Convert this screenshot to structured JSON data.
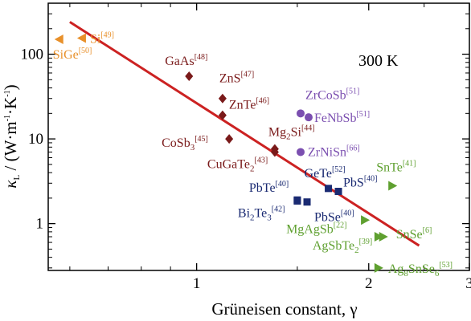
{
  "chart_data": {
    "type": "scatter",
    "title": "",
    "annotation": "300 K",
    "x_axis": {
      "label": "Grüneisen constant, γ",
      "scale": "log",
      "range": [
        0.55,
        3.0
      ],
      "ticks": [
        1,
        2,
        3
      ],
      "tick_labels": [
        "1",
        "2",
        "3"
      ]
    },
    "y_axis": {
      "label": "κL / (W·m⁻¹·K⁻¹)",
      "scale": "log",
      "range": [
        0.28,
        400
      ],
      "ticks": [
        1,
        10,
        100
      ],
      "tick_labels": [
        "1",
        "10",
        "100"
      ]
    },
    "grid": false,
    "legend": "none",
    "colors": {
      "fit_line": "#cc2222",
      "group_si": "#e8902a",
      "group_ii": "#7a1a1a",
      "group_iii": "#7b4fb0",
      "group_iv": "#1a2a72",
      "group_v": "#5fa030"
    },
    "fit_line": {
      "x": [
        0.6,
        2.45
      ],
      "y": [
        240,
        0.55
      ]
    },
    "points": [
      {
        "x": 0.63,
        "y": 155,
        "marker": "triangle-left",
        "group": "si",
        "label": "Si",
        "ref": "[49]",
        "sub": ""
      },
      {
        "x": 0.575,
        "y": 150,
        "marker": "triangle-left",
        "group": "si",
        "label": "SiGe",
        "ref": "[50]",
        "sub": ""
      },
      {
        "x": 0.97,
        "y": 55,
        "marker": "diamond",
        "group": "ii",
        "label": "GaAs",
        "ref": "[48]",
        "sub": ""
      },
      {
        "x": 1.11,
        "y": 30,
        "marker": "diamond",
        "group": "ii",
        "label": "ZnS",
        "ref": "[47]",
        "sub": ""
      },
      {
        "x": 1.11,
        "y": 19,
        "marker": "diamond",
        "group": "ii",
        "label": "ZnTe",
        "ref": "[46]",
        "sub": ""
      },
      {
        "x": 1.14,
        "y": 10,
        "marker": "diamond",
        "group": "ii",
        "label": "CoSb3",
        "ref": "[45]",
        "sub": ""
      },
      {
        "x": 1.37,
        "y": 7.6,
        "marker": "diamond",
        "group": "ii",
        "label": "Mg2Si",
        "ref": "[44]",
        "sub": ""
      },
      {
        "x": 1.37,
        "y": 7.0,
        "marker": "diamond",
        "group": "ii",
        "label": "CuGaTe2",
        "ref": "[43]",
        "sub": ""
      },
      {
        "x": 1.52,
        "y": 20,
        "marker": "circle",
        "group": "iii",
        "label": "ZrCoSb",
        "ref": "[51]",
        "sub": ""
      },
      {
        "x": 1.57,
        "y": 18,
        "marker": "circle",
        "group": "iii",
        "label": "FeNbSb",
        "ref": "[51]",
        "sub": ""
      },
      {
        "x": 1.52,
        "y": 7.0,
        "marker": "circle",
        "group": "iii",
        "label": "ZrNiSn",
        "ref": "[66]",
        "sub": ""
      },
      {
        "x": 1.7,
        "y": 2.6,
        "marker": "square",
        "group": "iv",
        "label": "GeTe",
        "ref": "[52]",
        "sub": ""
      },
      {
        "x": 1.77,
        "y": 2.4,
        "marker": "square",
        "group": "iv",
        "label": "PbS",
        "ref": "[40]",
        "sub": ""
      },
      {
        "x": 1.5,
        "y": 1.9,
        "marker": "square",
        "group": "iv",
        "label": "PbTe",
        "ref": "[40]",
        "sub": ""
      },
      {
        "x": 1.56,
        "y": 1.8,
        "marker": "square",
        "group": "iv",
        "label": "PbSe",
        "ref": "[40]",
        "sub": ""
      },
      {
        "x": 1.5,
        "y": 1.85,
        "marker": "square",
        "group": "iv",
        "label": "Bi2Te3",
        "ref": "[42]",
        "sub": ""
      },
      {
        "x": 2.2,
        "y": 2.8,
        "marker": "triangle-right",
        "group": "v",
        "label": "SnTe",
        "ref": "[41]",
        "sub": ""
      },
      {
        "x": 2.12,
        "y": 0.7,
        "marker": "triangle-right",
        "group": "v",
        "label": "SnSe",
        "ref": "[6]",
        "sub": ""
      },
      {
        "x": 1.97,
        "y": 1.1,
        "marker": "triangle-right",
        "group": "v",
        "label": "MgAgSb",
        "ref": "[22]",
        "sub": ""
      },
      {
        "x": 2.08,
        "y": 0.7,
        "marker": "triangle-right",
        "group": "v",
        "label": "AgSbTe2",
        "ref": "[39]",
        "sub": ""
      },
      {
        "x": 2.08,
        "y": 0.3,
        "marker": "triangle-right",
        "group": "v",
        "label": "Ag8SnSe6",
        "ref": "[53]",
        "sub": ""
      }
    ]
  }
}
